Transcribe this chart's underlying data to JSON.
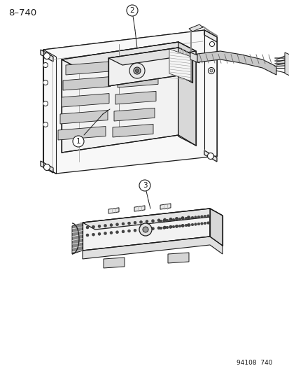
{
  "title_label": "8–740",
  "footer_label": "94108  740",
  "bg": "#ffffff",
  "lc": "#1a1a1a",
  "figsize": [
    4.14,
    5.33
  ],
  "dpi": 100
}
